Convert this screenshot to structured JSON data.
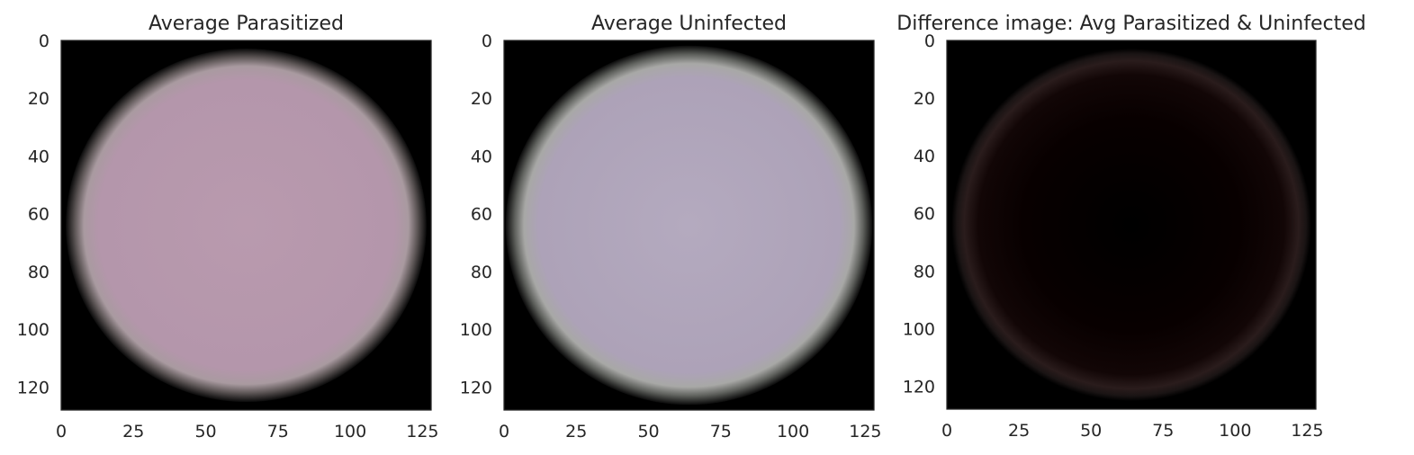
{
  "chart_data": [
    {
      "type": "heatmap",
      "title": "Average Parasitized",
      "image_shape": [
        128,
        128
      ],
      "xlim": [
        0,
        128
      ],
      "ylim": [
        128,
        0
      ],
      "xticks": [
        0,
        25,
        50,
        75,
        100,
        125
      ],
      "yticks": [
        0,
        20,
        40,
        60,
        80,
        100,
        120
      ],
      "xtick_labels": [
        "0",
        "25",
        "50",
        "75",
        "100",
        "125"
      ],
      "ytick_labels": [
        "0",
        "20",
        "40",
        "60",
        "80",
        "100",
        "120"
      ],
      "center": [
        64,
        64
      ],
      "cell_radius": 60,
      "cell_color": "#b596ac",
      "background_color": "#000000",
      "grid": false
    },
    {
      "type": "heatmap",
      "title": "Average Uninfected",
      "image_shape": [
        128,
        128
      ],
      "xlim": [
        0,
        128
      ],
      "ylim": [
        128,
        0
      ],
      "xticks": [
        0,
        25,
        50,
        75,
        100,
        125
      ],
      "yticks": [
        0,
        20,
        40,
        60,
        80,
        100,
        120
      ],
      "xtick_labels": [
        "0",
        "25",
        "50",
        "75",
        "100",
        "125"
      ],
      "ytick_labels": [
        "0",
        "20",
        "40",
        "60",
        "80",
        "100",
        "120"
      ],
      "center": [
        64,
        64
      ],
      "cell_radius": 61,
      "cell_color": "#aea3b9",
      "background_color": "#000000",
      "grid": false
    },
    {
      "type": "heatmap",
      "title": "Difference image: Avg Parasitized & Uninfected",
      "image_shape": [
        128,
        128
      ],
      "xlim": [
        0,
        128
      ],
      "ylim": [
        128,
        0
      ],
      "xticks": [
        0,
        25,
        50,
        75,
        100,
        125
      ],
      "yticks": [
        0,
        20,
        40,
        60,
        80,
        100,
        120
      ],
      "xtick_labels": [
        "0",
        "25",
        "50",
        "75",
        "100",
        "125"
      ],
      "ytick_labels": [
        "0",
        "20",
        "40",
        "60",
        "80",
        "100",
        "120"
      ],
      "center": [
        64,
        64
      ],
      "cell_radius": 60,
      "cell_color": "#0a0000",
      "ring_color": "#2e1a1a",
      "background_color": "#000000",
      "grid": false
    }
  ],
  "colors": {
    "text": "#262626",
    "axes_edge": "#262626"
  }
}
